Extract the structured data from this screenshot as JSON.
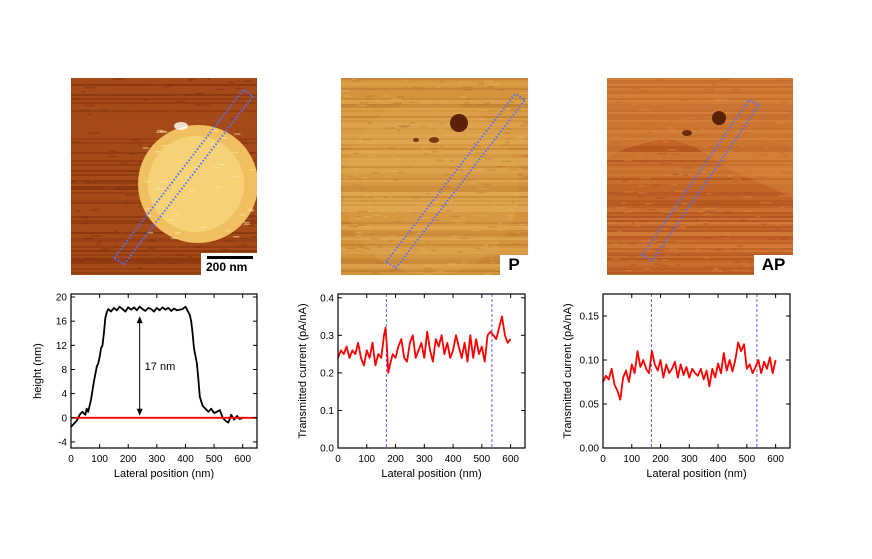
{
  "figure": {
    "images": [
      {
        "id": "topography",
        "label": "",
        "scale_bar": "200 nm",
        "colors": {
          "bg_dark": "#7a2a08",
          "bg_mid": "#a54a18",
          "island": "#f0c060",
          "island_hi": "#fbe08a"
        }
      },
      {
        "id": "current-p",
        "label": "P",
        "colors": {
          "bg": "#d4943c",
          "bg_hi": "#e8b460",
          "bg_lo": "#b8702a"
        }
      },
      {
        "id": "current-ap",
        "label": "AP",
        "colors": {
          "bg": "#c26428",
          "bg_hi": "#da8a40",
          "bg_lo": "#a84c1c"
        }
      }
    ],
    "box_color": "#5070ff",
    "trace_color": "#ff0000",
    "height_color": "#000000"
  },
  "chart_data": [
    {
      "type": "line",
      "id": "height-profile",
      "xlabel": "Lateral position (nm)",
      "ylabel": "height (nm)",
      "xlim": [
        0,
        650
      ],
      "ylim": [
        -5,
        20.5
      ],
      "xticks": [
        0,
        100,
        200,
        300,
        400,
        500,
        600
      ],
      "yticks": [
        -4,
        0,
        4,
        8,
        12,
        16,
        20
      ],
      "ytick_labels": [
        "-4",
        "0",
        "4",
        "8",
        "12",
        "16",
        "20"
      ],
      "series": [
        {
          "name": "height",
          "color": "#000000",
          "x": [
            0,
            10,
            20,
            30,
            40,
            50,
            55,
            60,
            70,
            80,
            90,
            95,
            100,
            105,
            110,
            115,
            120,
            125,
            130,
            140,
            150,
            160,
            170,
            180,
            190,
            200,
            210,
            220,
            230,
            240,
            250,
            260,
            270,
            280,
            290,
            300,
            310,
            320,
            330,
            340,
            350,
            360,
            370,
            380,
            390,
            400,
            410,
            415,
            420,
            425,
            430,
            440,
            445,
            450,
            460,
            470,
            480,
            490,
            500,
            510,
            520,
            530,
            540,
            550,
            560,
            570,
            580,
            590,
            600
          ],
          "y": [
            -1.5,
            -1.0,
            -0.5,
            0.5,
            1.0,
            0.5,
            1.5,
            1.0,
            3.0,
            6.0,
            8.5,
            9.0,
            10.0,
            11.5,
            12.0,
            14.0,
            16.5,
            17.5,
            18.0,
            17.6,
            18.2,
            17.8,
            18.4,
            18.0,
            17.6,
            18.3,
            17.9,
            18.3,
            17.8,
            18.4,
            18.0,
            17.7,
            18.2,
            18.0,
            17.6,
            18.2,
            17.8,
            18.3,
            17.9,
            18.2,
            17.7,
            18.1,
            17.8,
            17.9,
            18.0,
            18.4,
            17.5,
            17.0,
            16.0,
            14.0,
            11.5,
            9.0,
            6.5,
            3.5,
            2.0,
            1.5,
            1.0,
            1.5,
            0.8,
            1.0,
            1.3,
            0.0,
            -0.5,
            -0.8,
            0.5,
            -0.3,
            0.3,
            -0.2,
            0.0
          ]
        },
        {
          "name": "baseline",
          "color": "#ff0000",
          "x": [
            0,
            650
          ],
          "y": [
            0,
            0
          ]
        }
      ],
      "annotations": [
        {
          "text": "17 nm",
          "x": 240,
          "y_from": 0,
          "y_to": 17
        }
      ]
    },
    {
      "type": "line",
      "id": "current-p-profile",
      "xlabel": "Lateral position (nm)",
      "ylabel": "Transmitted current (pA/nA)",
      "xlim": [
        0,
        650
      ],
      "ylim": [
        0,
        0.41
      ],
      "xticks": [
        0,
        100,
        200,
        300,
        400,
        500,
        600
      ],
      "yticks": [
        0.0,
        0.1,
        0.2,
        0.3,
        0.4
      ],
      "ytick_labels": [
        "0.0",
        "0.1",
        "0.2",
        "0.3",
        "0.4"
      ],
      "vlines": [
        168,
        535
      ],
      "series": [
        {
          "name": "P",
          "color": "#ff0000",
          "x": [
            0,
            10,
            20,
            30,
            40,
            50,
            60,
            70,
            80,
            90,
            100,
            110,
            120,
            130,
            140,
            150,
            160,
            165,
            170,
            175,
            180,
            190,
            200,
            210,
            220,
            230,
            240,
            250,
            260,
            270,
            280,
            290,
            300,
            310,
            320,
            330,
            340,
            350,
            360,
            370,
            380,
            390,
            400,
            410,
            420,
            430,
            440,
            450,
            460,
            470,
            480,
            490,
            500,
            510,
            520,
            530,
            540,
            550,
            560,
            570,
            580,
            590,
            600
          ],
          "y": [
            0.24,
            0.26,
            0.25,
            0.27,
            0.24,
            0.26,
            0.25,
            0.28,
            0.24,
            0.22,
            0.26,
            0.24,
            0.28,
            0.22,
            0.25,
            0.24,
            0.3,
            0.32,
            0.27,
            0.2,
            0.22,
            0.25,
            0.24,
            0.27,
            0.29,
            0.24,
            0.23,
            0.28,
            0.3,
            0.24,
            0.26,
            0.28,
            0.24,
            0.31,
            0.26,
            0.23,
            0.29,
            0.27,
            0.3,
            0.25,
            0.28,
            0.24,
            0.26,
            0.3,
            0.27,
            0.24,
            0.28,
            0.23,
            0.3,
            0.24,
            0.29,
            0.25,
            0.27,
            0.23,
            0.3,
            0.31,
            0.3,
            0.29,
            0.32,
            0.35,
            0.3,
            0.28,
            0.29
          ]
        }
      ]
    },
    {
      "type": "line",
      "id": "current-ap-profile",
      "xlabel": "Lateral position (nm)",
      "ylabel": "Transmitted current (pA/nA)",
      "xlim": [
        0,
        650
      ],
      "ylim": [
        0,
        0.175
      ],
      "xticks": [
        0,
        100,
        200,
        300,
        400,
        500,
        600
      ],
      "yticks": [
        0.0,
        0.05,
        0.1,
        0.15
      ],
      "ytick_labels": [
        "0.00",
        "0.05",
        "0.10",
        "0.15"
      ],
      "vlines": [
        168,
        535
      ],
      "series": [
        {
          "name": "AP",
          "color": "#ff0000",
          "x": [
            0,
            10,
            20,
            30,
            40,
            50,
            60,
            70,
            80,
            90,
            100,
            110,
            120,
            130,
            140,
            150,
            160,
            170,
            180,
            190,
            200,
            210,
            220,
            230,
            240,
            250,
            260,
            270,
            280,
            290,
            300,
            310,
            320,
            330,
            340,
            350,
            360,
            370,
            380,
            390,
            400,
            410,
            420,
            430,
            440,
            450,
            460,
            470,
            480,
            490,
            500,
            510,
            520,
            530,
            540,
            550,
            560,
            570,
            580,
            590,
            600
          ],
          "y": [
            0.075,
            0.082,
            0.078,
            0.09,
            0.072,
            0.065,
            0.055,
            0.08,
            0.088,
            0.075,
            0.095,
            0.085,
            0.11,
            0.092,
            0.1,
            0.09,
            0.085,
            0.11,
            0.095,
            0.088,
            0.1,
            0.08,
            0.095,
            0.085,
            0.09,
            0.098,
            0.08,
            0.095,
            0.083,
            0.092,
            0.08,
            0.09,
            0.085,
            0.082,
            0.09,
            0.078,
            0.088,
            0.07,
            0.09,
            0.08,
            0.096,
            0.085,
            0.108,
            0.088,
            0.1,
            0.087,
            0.1,
            0.12,
            0.11,
            0.118,
            0.09,
            0.095,
            0.085,
            0.092,
            0.1,
            0.085,
            0.098,
            0.09,
            0.103,
            0.085,
            0.1
          ]
        }
      ]
    }
  ]
}
